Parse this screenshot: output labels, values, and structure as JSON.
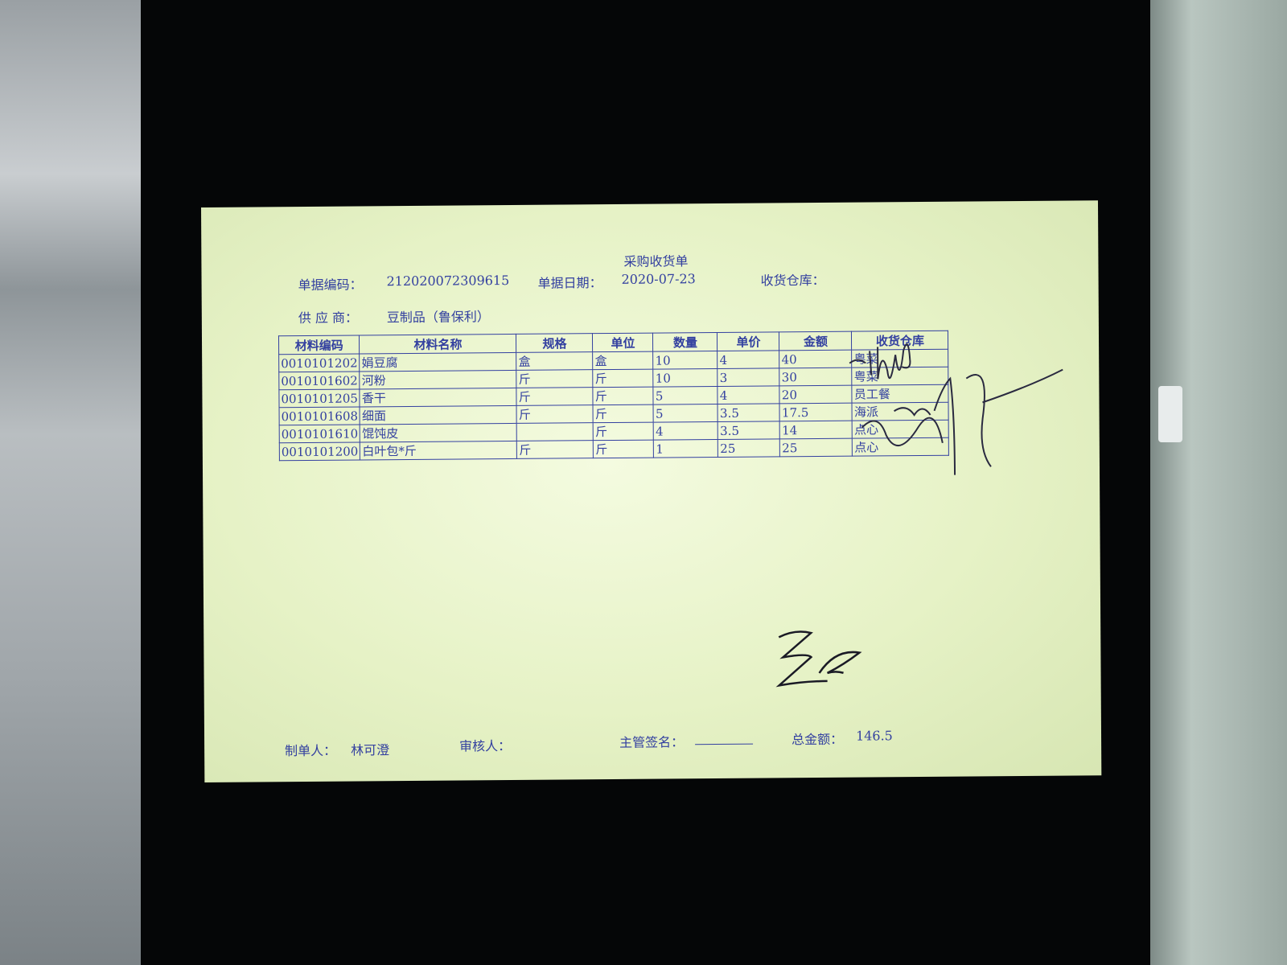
{
  "document": {
    "title": "采购收货单",
    "doc_no_label": "单据编码：",
    "doc_no": "212020072309615",
    "date_label": "单据日期：",
    "date": "2020-07-23",
    "warehouse_label": "收货仓库：",
    "supplier_label": "供 应 商：",
    "supplier": "豆制品（鲁保利）",
    "table": {
      "headers": [
        "材料编码",
        "材料名称",
        "规格",
        "单位",
        "数量",
        "单价",
        "金额",
        "收货仓库"
      ],
      "rows": [
        [
          "0010101202",
          "娟豆腐",
          "盒",
          "盒",
          "10",
          "4",
          "40",
          "粤菜"
        ],
        [
          "0010101602",
          "河粉",
          "斤",
          "斤",
          "10",
          "3",
          "30",
          "粤菜"
        ],
        [
          "0010101205",
          "香干",
          "斤",
          "斤",
          "5",
          "4",
          "20",
          "员工餐"
        ],
        [
          "0010101608",
          "细面",
          "斤",
          "斤",
          "5",
          "3.5",
          "17.5",
          "海派"
        ],
        [
          "0010101610",
          "馄饨皮",
          "",
          "斤",
          "4",
          "3.5",
          "14",
          "点心"
        ],
        [
          "0010101200",
          "白叶包*斤",
          "斤",
          "斤",
          "1",
          "25",
          "25",
          "点心"
        ]
      ]
    },
    "footer": {
      "maker_label": "制单人：",
      "maker": "林可澄",
      "reviewer_label": "审核人：",
      "supervisor_label": "主管签名：",
      "total_label": "总金额：",
      "total": "146.5"
    },
    "ink_color": "#3340a0",
    "paper_color": "#e6f2c6"
  }
}
